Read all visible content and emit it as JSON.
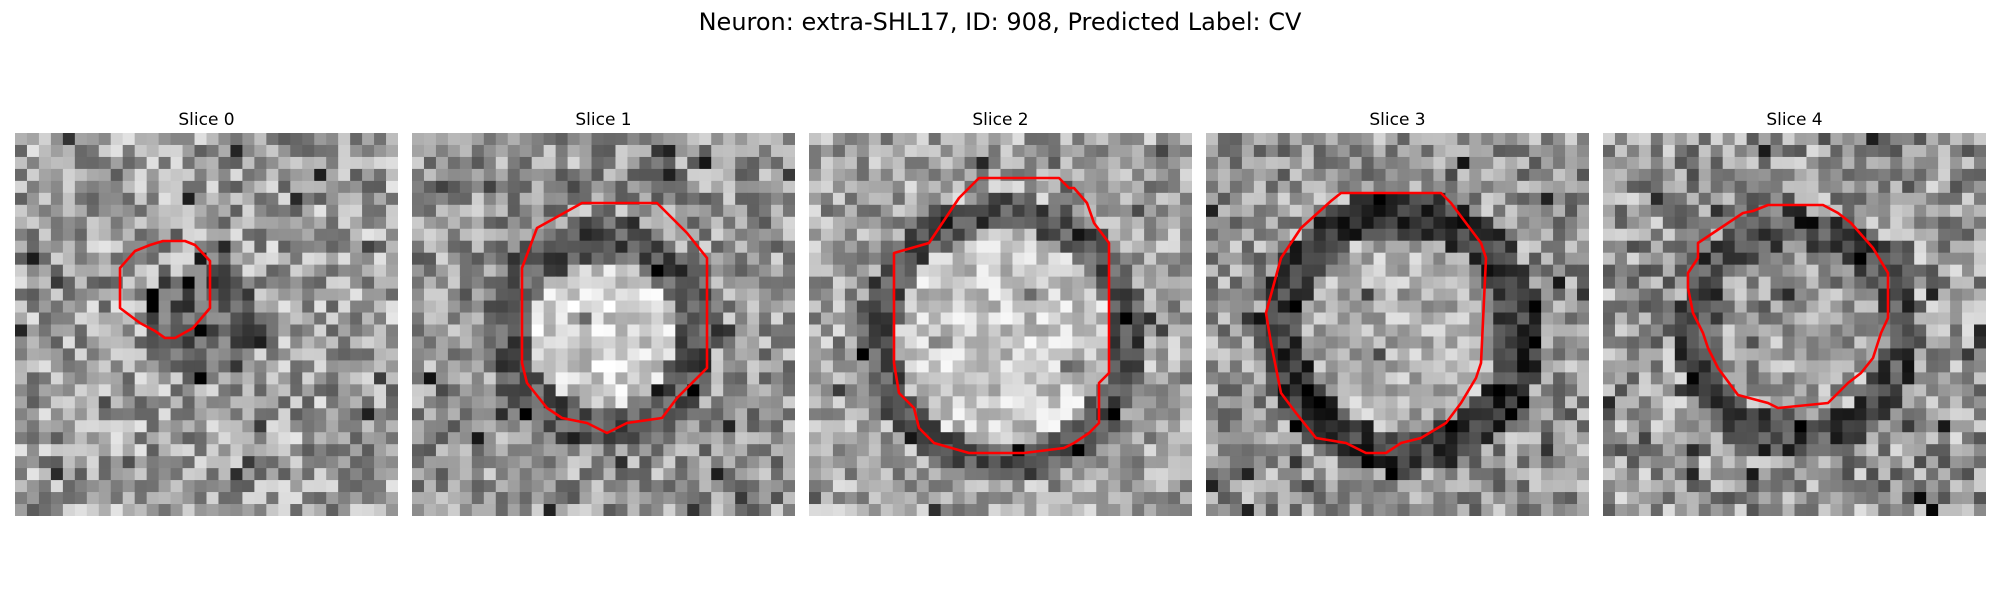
{
  "figure": {
    "title": "Neuron: extra-SHL17, ID: 908, Predicted Label: CV"
  },
  "panels": [
    {
      "label": "Slice 0"
    },
    {
      "label": "Slice 1"
    },
    {
      "label": "Slice 2"
    },
    {
      "label": "Slice 3"
    },
    {
      "label": "Slice 4"
    }
  ],
  "colors": {
    "contour": "#ff0000",
    "colormap": "grayscale"
  }
}
